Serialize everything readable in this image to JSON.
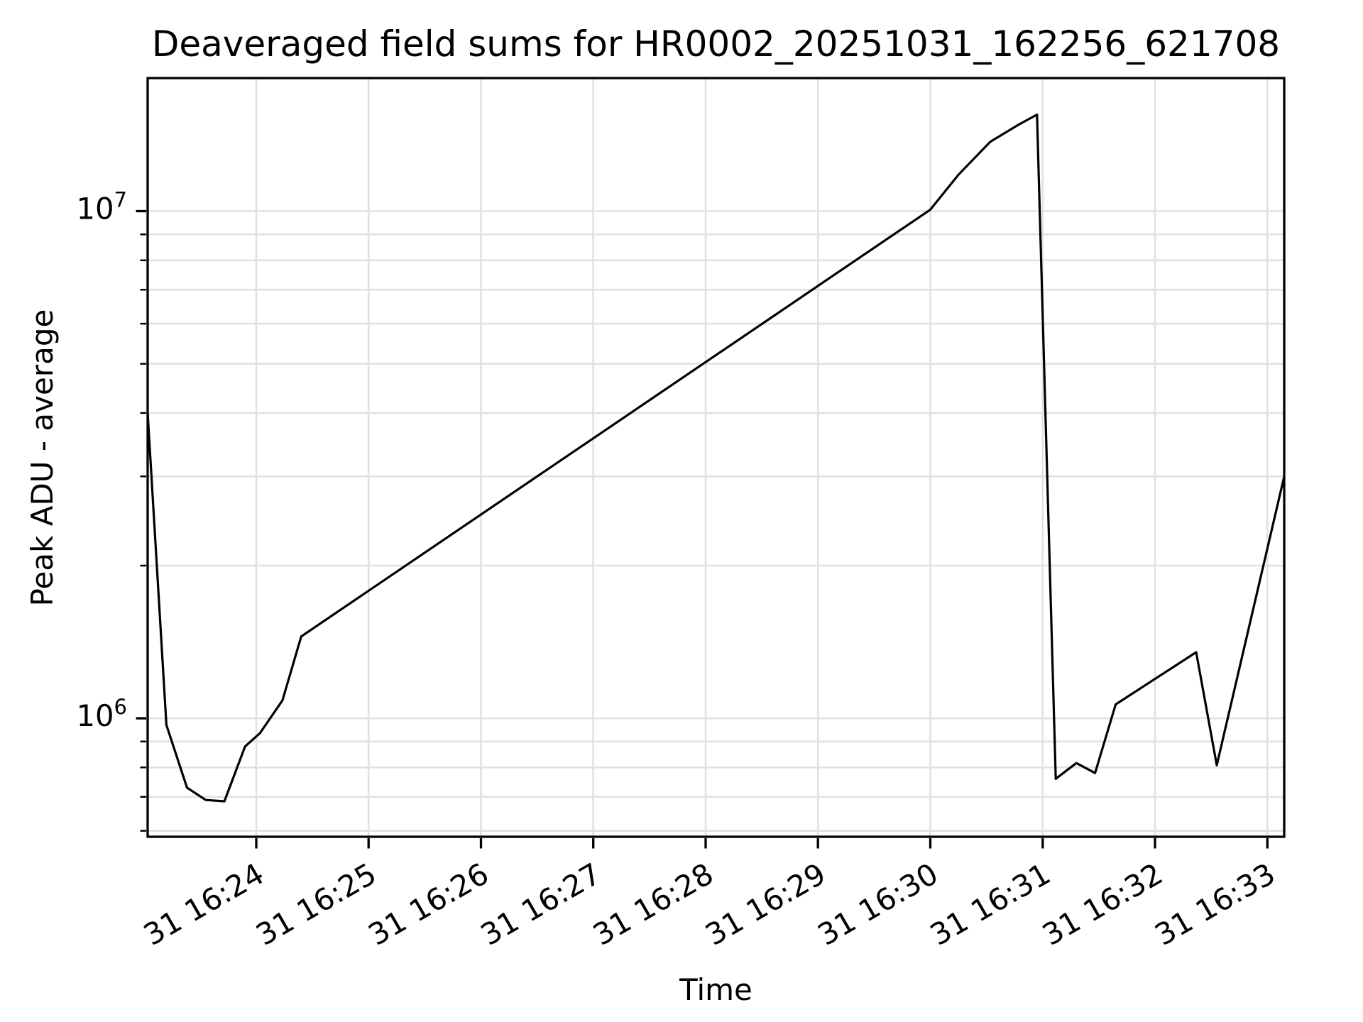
{
  "chart_data": {
    "type": "line",
    "title": "Deaveraged field sums for HR0002_20251031_162256_621708",
    "xlabel": "Time",
    "ylabel": "Peak ADU - average",
    "yscale": "log",
    "grid": "both",
    "legend": "none",
    "background": "#ffffff",
    "grid_color": "#e1e1e1",
    "axis_color": "#000000",
    "xlim": [
      "16:23:02",
      "16:33:09"
    ],
    "ylim": [
      584000,
      18300000
    ],
    "x_ticks": [
      {
        "time": "16:24",
        "label": "31 16:24"
      },
      {
        "time": "16:25",
        "label": "31 16:25"
      },
      {
        "time": "16:26",
        "label": "31 16:26"
      },
      {
        "time": "16:27",
        "label": "31 16:27"
      },
      {
        "time": "16:28",
        "label": "31 16:28"
      },
      {
        "time": "16:29",
        "label": "31 16:29"
      },
      {
        "time": "16:30",
        "label": "31 16:30"
      },
      {
        "time": "16:31",
        "label": "31 16:31"
      },
      {
        "time": "16:32",
        "label": "31 16:32"
      },
      {
        "time": "16:33",
        "label": "31 16:33"
      }
    ],
    "y_major_ticks": [
      {
        "value": 1000000,
        "mantissa": "10",
        "exponent": "6"
      },
      {
        "value": 10000000,
        "mantissa": "10",
        "exponent": "7"
      }
    ],
    "y_minor_ticks": [
      600000,
      700000,
      800000,
      900000,
      2000000,
      3000000,
      4000000,
      5000000,
      6000000,
      7000000,
      8000000,
      9000000
    ],
    "series": [
      {
        "color": "#000000",
        "points": [
          [
            "16:23:02",
            4000000
          ],
          [
            "16:23:12",
            970000
          ],
          [
            "16:23:23",
            730000
          ],
          [
            "16:23:33",
            690000
          ],
          [
            "16:23:43",
            686000
          ],
          [
            "16:23:54",
            880000
          ],
          [
            "16:24:02",
            935000
          ],
          [
            "16:24:14",
            1085000
          ],
          [
            "16:24:24",
            1450000
          ],
          [
            "16:30:00",
            10070000
          ],
          [
            "16:30:15",
            11800000
          ],
          [
            "16:30:32",
            13700000
          ],
          [
            "16:30:47",
            14800000
          ],
          [
            "16:30:57",
            15500000
          ],
          [
            "16:31:07",
            760000
          ],
          [
            "16:31:18",
            816000
          ],
          [
            "16:31:28",
            780000
          ],
          [
            "16:31:39",
            1065000
          ],
          [
            "16:32:22",
            1350000
          ],
          [
            "16:32:33",
            808000
          ],
          [
            "16:33:09",
            3000000
          ]
        ]
      }
    ]
  }
}
